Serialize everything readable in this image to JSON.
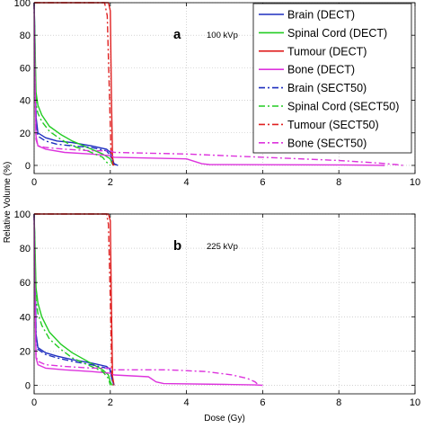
{
  "chart_data": [
    {
      "type": "line",
      "panel": "a",
      "annotation": "100 kVp",
      "xlabel": "",
      "ylabel": "",
      "xlim": [
        0,
        10
      ],
      "ylim": [
        -5,
        100
      ],
      "xticks": [
        0,
        2,
        4,
        6,
        8,
        10
      ],
      "yticks": [
        0,
        20,
        40,
        60,
        80,
        100
      ],
      "grid": true,
      "legend": "top-right",
      "series": [
        {
          "name": "Brain (DECT)",
          "color": "#1f2fbf",
          "dash": "solid",
          "x": [
            0,
            0.02,
            0.05,
            0.1,
            0.3,
            0.6,
            1.0,
            1.5,
            1.9,
            2.0,
            2.05,
            2.1,
            2.2
          ],
          "y": [
            100,
            80,
            30,
            20,
            17,
            15,
            14,
            12,
            10,
            8,
            4,
            1,
            0
          ]
        },
        {
          "name": "Spinal Cord (DECT)",
          "color": "#22cc22",
          "dash": "solid",
          "x": [
            0,
            0.02,
            0.05,
            0.1,
            0.2,
            0.4,
            0.7,
            1.0,
            1.4,
            1.8,
            2.0,
            2.05,
            2.1
          ],
          "y": [
            100,
            80,
            45,
            37,
            31,
            24,
            19,
            15,
            11,
            7,
            4,
            1,
            0
          ]
        },
        {
          "name": "Tumour (DECT)",
          "color": "#e02020",
          "dash": "solid",
          "x": [
            0,
            1.95,
            2.0,
            2.03,
            2.06,
            2.1
          ],
          "y": [
            100,
            100,
            95,
            40,
            5,
            0
          ]
        },
        {
          "name": "Bone (DECT)",
          "color": "#dd33dd",
          "dash": "solid",
          "x": [
            0,
            0.02,
            0.05,
            0.1,
            0.3,
            0.8,
            1.5,
            2.0,
            2.1,
            4.0,
            4.4,
            4.6,
            8.0,
            9.0,
            9.2
          ],
          "y": [
            100,
            60,
            18,
            12,
            10,
            8,
            7,
            6,
            5,
            4,
            1,
            0.5,
            0.3,
            0.1,
            0
          ]
        },
        {
          "name": "Brain (SECT50)",
          "color": "#1f2fbf",
          "dash": "dashdot",
          "x": [
            0,
            0.02,
            0.05,
            0.1,
            0.3,
            0.6,
            1.0,
            1.5,
            1.9,
            2.0,
            2.05,
            2.1,
            2.2
          ],
          "y": [
            100,
            70,
            28,
            18,
            15,
            13,
            12,
            11,
            9,
            6,
            3,
            1,
            0
          ]
        },
        {
          "name": "Spinal Cord (SECT50)",
          "color": "#22cc22",
          "dash": "dashdot",
          "x": [
            0,
            0.02,
            0.05,
            0.1,
            0.2,
            0.4,
            0.7,
            1.0,
            1.4,
            1.8,
            1.9,
            2.0
          ],
          "y": [
            100,
            70,
            38,
            32,
            27,
            21,
            16,
            12,
            9,
            5,
            2,
            0
          ]
        },
        {
          "name": "Tumour (SECT50)",
          "color": "#e02020",
          "dash": "dashdot",
          "x": [
            0,
            1.85,
            1.92,
            1.97,
            2.02,
            2.07
          ],
          "y": [
            100,
            100,
            92,
            50,
            8,
            0
          ]
        },
        {
          "name": "Bone (SECT50)",
          "color": "#dd33dd",
          "dash": "dashdot",
          "x": [
            0,
            0.02,
            0.05,
            0.1,
            0.3,
            0.8,
            1.5,
            2.0,
            2.1,
            4.0,
            6.0,
            8.0,
            9.0,
            9.5,
            9.7
          ],
          "y": [
            100,
            55,
            16,
            12,
            11,
            10,
            9,
            9,
            8,
            7,
            5,
            3,
            1.5,
            0.5,
            0
          ]
        }
      ]
    },
    {
      "type": "line",
      "panel": "b",
      "annotation": "225 kVp",
      "xlabel": "Dose (Gy)",
      "ylabel": "Relative Volume (%)",
      "xlim": [
        0,
        10
      ],
      "ylim": [
        -5,
        100
      ],
      "xticks": [
        0,
        2,
        4,
        6,
        8,
        10
      ],
      "yticks": [
        0,
        20,
        40,
        60,
        80,
        100
      ],
      "grid": true,
      "series": [
        {
          "name": "Brain (DECT)",
          "color": "#1f2fbf",
          "dash": "solid",
          "x": [
            0,
            0.02,
            0.05,
            0.1,
            0.3,
            0.6,
            1.0,
            1.5,
            1.9,
            2.0,
            2.05,
            2.1
          ],
          "y": [
            100,
            80,
            30,
            22,
            19,
            17,
            15,
            13,
            11,
            9,
            3,
            0
          ]
        },
        {
          "name": "Spinal Cord (DECT)",
          "color": "#22cc22",
          "dash": "solid",
          "x": [
            0,
            0.02,
            0.05,
            0.1,
            0.2,
            0.4,
            0.7,
            1.0,
            1.4,
            1.8,
            1.95,
            2.0,
            2.05
          ],
          "y": [
            100,
            85,
            57,
            48,
            40,
            31,
            24,
            19,
            14,
            9,
            6,
            2,
            0
          ]
        },
        {
          "name": "Tumour (DECT)",
          "color": "#e02020",
          "dash": "solid",
          "x": [
            0,
            1.95,
            2.0,
            2.03,
            2.06,
            2.1
          ],
          "y": [
            100,
            100,
            96,
            45,
            5,
            0
          ]
        },
        {
          "name": "Bone (DECT)",
          "color": "#dd33dd",
          "dash": "solid",
          "x": [
            0,
            0.02,
            0.05,
            0.1,
            0.3,
            0.8,
            1.5,
            2.0,
            2.1,
            3.0,
            3.2,
            3.4,
            5.0,
            5.8,
            6.0
          ],
          "y": [
            100,
            60,
            16,
            12,
            10,
            9,
            8,
            7,
            6,
            5,
            2,
            1,
            0.5,
            0.2,
            0
          ]
        },
        {
          "name": "Brain (SECT50)",
          "color": "#1f2fbf",
          "dash": "dashdot",
          "x": [
            0,
            0.02,
            0.05,
            0.1,
            0.3,
            0.6,
            1.0,
            1.5,
            1.9,
            2.0,
            2.05,
            2.1
          ],
          "y": [
            100,
            75,
            29,
            21,
            18,
            16,
            14,
            12,
            10,
            8,
            3,
            0
          ]
        },
        {
          "name": "Spinal Cord (SECT50)",
          "color": "#22cc22",
          "dash": "dashdot",
          "x": [
            0,
            0.02,
            0.05,
            0.1,
            0.2,
            0.4,
            0.7,
            1.0,
            1.4,
            1.8,
            1.95,
            2.0
          ],
          "y": [
            100,
            80,
            50,
            42,
            35,
            27,
            21,
            16,
            12,
            8,
            4,
            0
          ]
        },
        {
          "name": "Tumour (SECT50)",
          "color": "#e02020",
          "dash": "dashdot",
          "x": [
            0,
            1.9,
            1.95,
            2.0,
            2.04,
            2.08
          ],
          "y": [
            100,
            100,
            94,
            50,
            7,
            0
          ]
        },
        {
          "name": "Bone (SECT50)",
          "color": "#dd33dd",
          "dash": "dashdot",
          "x": [
            0,
            0.02,
            0.05,
            0.1,
            0.3,
            0.8,
            1.5,
            2.0,
            2.1,
            3.5,
            4.5,
            5.2,
            5.6,
            5.8,
            5.9
          ],
          "y": [
            100,
            55,
            17,
            14,
            12,
            11,
            10,
            10,
            9,
            9,
            8,
            6,
            4,
            2,
            0
          ]
        }
      ]
    }
  ]
}
